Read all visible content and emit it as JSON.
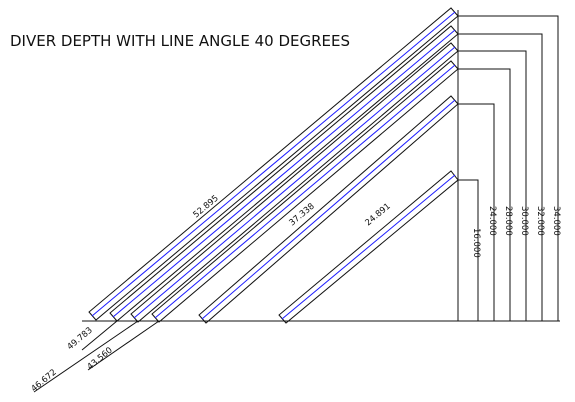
{
  "title": "DIVER DEPTH WITH LINE ANGLE 40 DEGREES",
  "colors": {
    "outline": "#111111",
    "centerline": "#1a1aff",
    "background": "#ffffff"
  },
  "depths": [
    "16.000",
    "24.000",
    "28.000",
    "30.000",
    "32.000",
    "34.000"
  ],
  "line_lengths": [
    "24.891",
    "37.338",
    "52.895",
    "49.783",
    "43.560",
    "46.672"
  ]
}
